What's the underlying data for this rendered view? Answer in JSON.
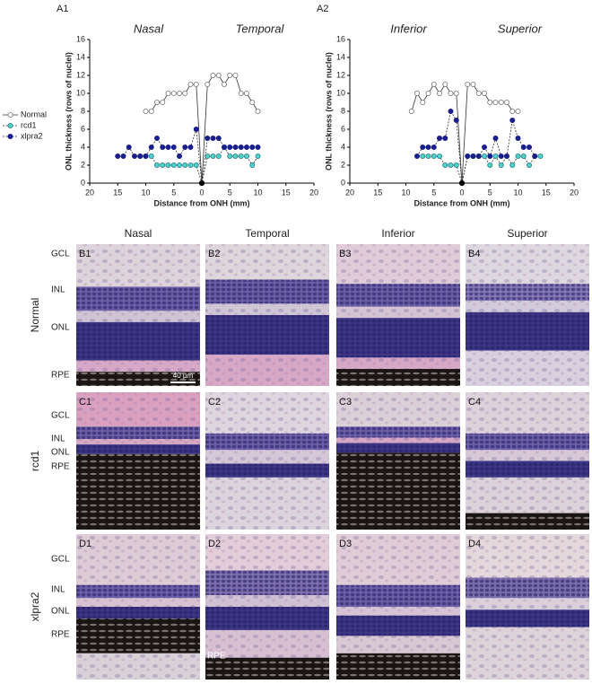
{
  "chart_data": [
    {
      "type": "line",
      "panel": "A1",
      "regions": [
        "Nasal",
        "Temporal"
      ],
      "ylabel": "ONL thickness (rows of nuclei)",
      "xlabel": "Distance from ONH (mm)",
      "xlim": [
        -20,
        20
      ],
      "xticks": [
        {
          "value": -20,
          "label": "20"
        },
        {
          "value": -15,
          "label": "15"
        },
        {
          "value": -10,
          "label": "10"
        },
        {
          "value": -5,
          "label": "5"
        },
        0,
        5,
        10,
        15,
        20
      ],
      "ylim": [
        0,
        16
      ],
      "yticks": [
        0,
        2,
        4,
        6,
        8,
        10,
        12,
        14,
        16
      ],
      "legend": "left",
      "series": [
        {
          "name": "Normal",
          "color": "#ffffff",
          "edge_color": "#777777",
          "line_style": "solid",
          "x": [
            -10,
            -9,
            -8,
            -7,
            -6,
            -5,
            -4,
            -3,
            -2,
            -1,
            0,
            1,
            2,
            3,
            4,
            5,
            6,
            7,
            8,
            9,
            10
          ],
          "values": [
            8,
            8,
            9,
            9,
            10,
            10,
            10,
            10,
            11,
            11,
            0,
            11,
            12,
            12,
            11,
            12,
            12,
            10,
            10,
            9,
            8
          ]
        },
        {
          "name": "rcd1",
          "color": "#4fd1cc",
          "edge_color": "#2a7f85",
          "line_style": "dashed",
          "x": [
            -11,
            -10,
            -9,
            -8,
            -7,
            -6,
            -5,
            -4,
            -3,
            -2,
            -1,
            0,
            1,
            2,
            3,
            4,
            5,
            6,
            7,
            8,
            9,
            10
          ],
          "values": [
            3,
            3,
            3,
            2,
            2,
            2,
            2,
            2,
            2,
            2,
            2,
            0,
            3,
            3,
            3,
            4,
            3,
            3,
            3,
            3,
            2,
            3
          ]
        },
        {
          "name": "xlpra2",
          "color": "#1a1f8c",
          "edge_color": "#1a1f8c",
          "line_style": "dashed",
          "x": [
            -15,
            -14,
            -13,
            -12,
            -11,
            -10,
            -9,
            -8,
            -7,
            -6,
            -5,
            -4,
            -3,
            -2,
            -1,
            0,
            1,
            2,
            3,
            4,
            5,
            6,
            7,
            8,
            9,
            10
          ],
          "values": [
            3,
            3,
            4,
            3,
            3,
            3,
            4,
            5,
            4,
            4,
            4,
            3,
            4,
            4,
            6,
            0,
            5,
            5,
            5,
            4,
            4,
            4,
            4,
            4,
            4,
            4
          ]
        }
      ]
    },
    {
      "type": "line",
      "panel": "A2",
      "regions": [
        "Inferior",
        "Superior"
      ],
      "ylabel": "ONL thickness (rows of nuclei)",
      "xlabel": "Distance from ONH (mm)",
      "xlim": [
        -20,
        20
      ],
      "xticks": [
        {
          "value": -20,
          "label": "20"
        },
        {
          "value": -15,
          "label": "15"
        },
        {
          "value": -10,
          "label": "10"
        },
        {
          "value": -5,
          "label": "5"
        },
        0,
        5,
        10,
        15,
        20
      ],
      "ylim": [
        0,
        16
      ],
      "yticks": [
        0,
        2,
        4,
        6,
        8,
        10,
        12,
        14,
        16
      ],
      "series": [
        {
          "name": "Normal",
          "color": "#ffffff",
          "edge_color": "#777777",
          "line_style": "solid",
          "x": [
            -9,
            -8,
            -7,
            -6,
            -5,
            -4,
            -3,
            -2,
            -1,
            0,
            1,
            2,
            3,
            4,
            5,
            6,
            7,
            8,
            9,
            10
          ],
          "values": [
            8,
            10,
            9,
            10,
            11,
            10,
            11,
            10,
            10,
            0,
            11,
            11,
            10,
            10,
            9,
            9,
            9,
            9,
            8,
            8
          ]
        },
        {
          "name": "rcd1",
          "color": "#4fd1cc",
          "edge_color": "#2a7f85",
          "line_style": "dashed",
          "x": [
            -7,
            -6,
            -5,
            -4,
            -3,
            -2,
            -1,
            0,
            1,
            2,
            3,
            4,
            5,
            6,
            7,
            8,
            9,
            10,
            11,
            12,
            13,
            14
          ],
          "values": [
            3,
            3,
            3,
            3,
            2,
            2,
            2,
            0,
            3,
            3,
            3,
            3,
            2,
            3,
            2,
            3,
            2,
            3,
            3,
            2,
            3,
            3
          ]
        },
        {
          "name": "xlpra2",
          "color": "#1a1f8c",
          "edge_color": "#1a1f8c",
          "line_style": "dashed",
          "x": [
            -8,
            -7,
            -6,
            -5,
            -4,
            -3,
            -2,
            -1,
            0,
            1,
            2,
            3,
            4,
            5,
            6,
            7,
            8,
            9,
            10,
            11,
            12,
            13
          ],
          "values": [
            3,
            4,
            4,
            4,
            5,
            5,
            8,
            7,
            0,
            3,
            3,
            3,
            4,
            3,
            5,
            3,
            3,
            7,
            5,
            4,
            4,
            3
          ]
        }
      ]
    }
  ],
  "histology": {
    "columns": [
      "Nasal",
      "Temporal",
      "Inferior",
      "Superior"
    ],
    "rows": [
      {
        "label": "Normal",
        "layers": [
          "GCL",
          "INL",
          "ONL",
          "RPE"
        ],
        "panels": [
          "B1",
          "B2",
          "B3",
          "B4"
        ]
      },
      {
        "label": "rcd1",
        "layers": [
          "GCL",
          "INL",
          "ONL",
          "RPE"
        ],
        "panels": [
          "C1",
          "C2",
          "C3",
          "C4"
        ]
      },
      {
        "label": "xlpra2",
        "layers": [
          "GCL",
          "INL",
          "ONL",
          "RPE"
        ],
        "panels": [
          "D1",
          "D2",
          "D3",
          "D4"
        ]
      }
    ],
    "scale_bar": "40 µm",
    "inset_label": "RPE"
  }
}
